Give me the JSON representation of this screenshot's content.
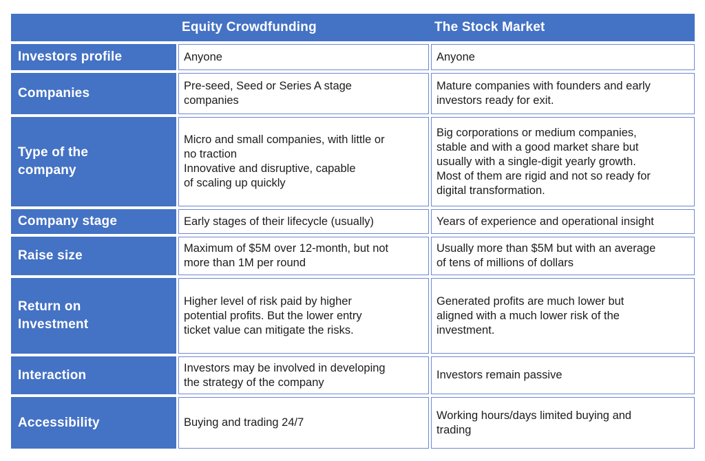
{
  "colors": {
    "header_blue": "#4472C4",
    "cell_border_blue": "#6d87d3",
    "header_text": "#ffffff",
    "body_text": "#1c1c1c"
  },
  "table": {
    "column_headers": [
      "Equity Crowdfunding",
      "The Stock Market"
    ],
    "rows": [
      {
        "label": "Investors profile",
        "equity_crowdfunding": "Anyone",
        "stock_market": "Anyone"
      },
      {
        "label": "Companies",
        "equity_crowdfunding": "Pre-seed, Seed or Series A stage\ncompanies",
        "stock_market": "Mature companies with founders and early\ninvestors ready for exit."
      },
      {
        "label": "Type of the\ncompany",
        "equity_crowdfunding": "Micro and small companies, with little or\nno traction\nInnovative and disruptive, capable\nof scaling up quickly",
        "stock_market": "Big corporations or medium companies,\nstable and with a good market share but\nusually with a single-digit yearly growth.\nMost of them are rigid and not so ready for\ndigital transformation."
      },
      {
        "label": "Company stage",
        "equity_crowdfunding": "Early stages of their lifecycle (usually)",
        "stock_market": "Years of experience and operational insight"
      },
      {
        "label": "Raise size",
        "equity_crowdfunding": "Maximum of $5M over 12-month, but not\nmore than 1M per round",
        "stock_market": "Usually more than $5M but with an average\nof tens of millions of dollars"
      },
      {
        "label": "Return on\nInvestment",
        "equity_crowdfunding": "Higher level of risk paid by higher\npotential profits. But the lower entry\nticket value can mitigate the risks.",
        "stock_market": "Generated profits are much lower but\naligned with a much lower risk of the\ninvestment."
      },
      {
        "label": "Interaction",
        "equity_crowdfunding": "Investors may be involved in developing\nthe strategy of the company",
        "stock_market": "Investors remain passive"
      },
      {
        "label": "Accessibility",
        "equity_crowdfunding": "Buying and trading 24/7",
        "stock_market": "Working hours/days limited buying and\ntrading"
      }
    ]
  }
}
